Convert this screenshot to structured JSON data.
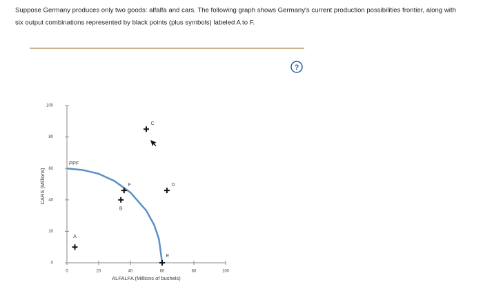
{
  "question": [
    "Suppose Germany produces only two goods: alfalfa and cars. The following graph shows Germany's current production possibilities frontier, along with",
    "six output combinations represented by black points (plus symbols) labeled A to F."
  ],
  "help_icon": "?",
  "chart_data": {
    "type": "scatter",
    "x_label": "ALFALFA (Millions of bushels)",
    "y_label": "CARS (Millions)",
    "xlim": [
      0,
      100
    ],
    "ylim": [
      0,
      100
    ],
    "xticks": [
      0,
      20,
      40,
      60,
      80,
      100
    ],
    "yticks": [
      0,
      20,
      40,
      60,
      80,
      100
    ],
    "ppf": {
      "name": "PPF",
      "color": "#5b8fc7",
      "x": [
        0,
        10,
        20,
        30,
        40,
        50,
        55,
        58,
        60
      ],
      "values": [
        60,
        59,
        56.6,
        52,
        44.7,
        33.2,
        24,
        15,
        0
      ]
    },
    "points": {
      "color": "#111111",
      "labels": [
        "A",
        "B",
        "C",
        "D",
        "E",
        "F"
      ],
      "x": [
        5,
        34,
        50,
        63,
        60,
        36
      ],
      "values": [
        10,
        40,
        85,
        46,
        0,
        46
      ]
    }
  }
}
